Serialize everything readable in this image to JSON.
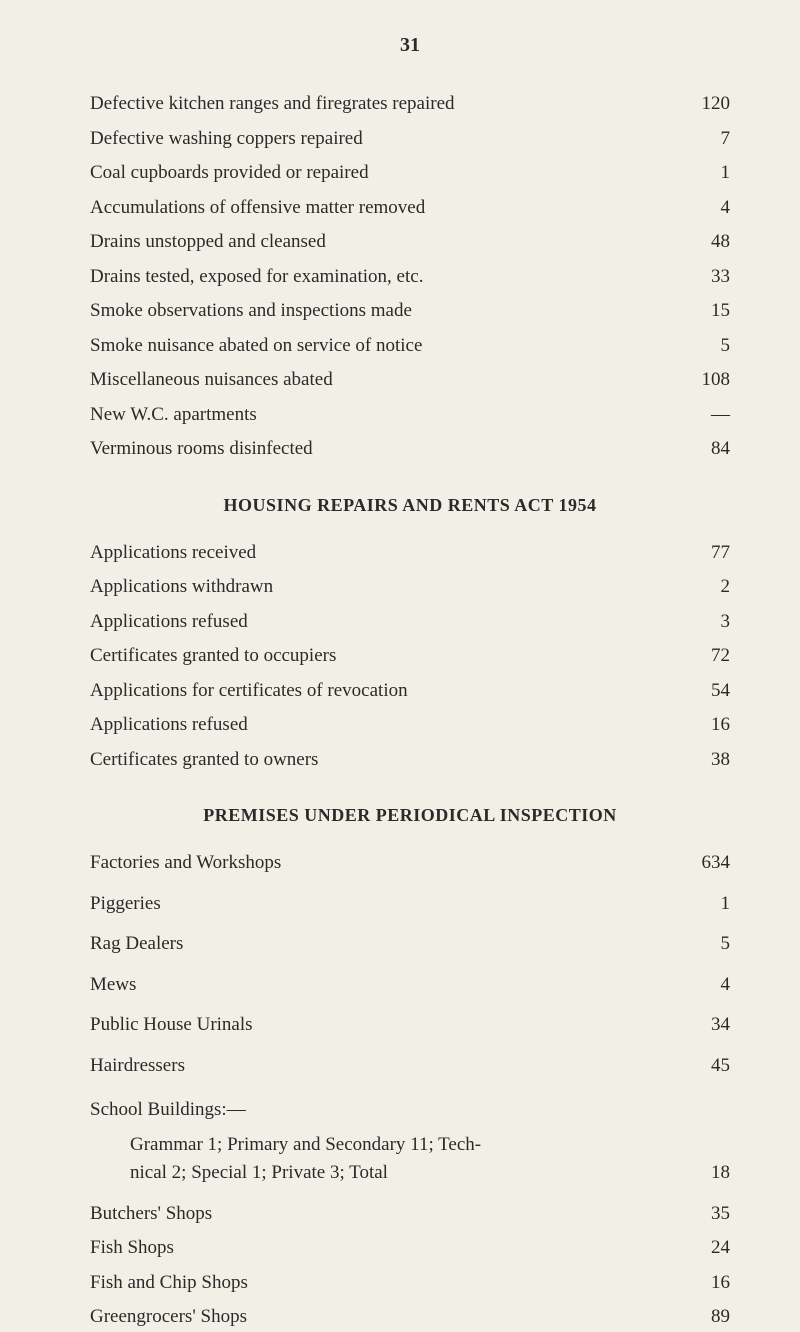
{
  "pageNumber": "31",
  "section1": {
    "items": [
      {
        "label": "Defective kitchen ranges and firegrates repaired",
        "value": "120"
      },
      {
        "label": "Defective washing coppers repaired",
        "value": "7"
      },
      {
        "label": "Coal cupboards provided or repaired",
        "value": "1"
      },
      {
        "label": "Accumulations of offensive matter removed",
        "value": "4"
      },
      {
        "label": "Drains unstopped and cleansed",
        "value": "48"
      },
      {
        "label": "Drains tested, exposed for examination, etc.",
        "value": "33"
      },
      {
        "label": "Smoke observations and inspections made",
        "value": "15"
      },
      {
        "label": "Smoke nuisance abated on service of notice",
        "value": "5"
      },
      {
        "label": "Miscellaneous nuisances abated",
        "value": "108"
      },
      {
        "label": "New W.C. apartments",
        "value": "—"
      },
      {
        "label": "Verminous rooms disinfected",
        "value": "84"
      }
    ]
  },
  "section2": {
    "heading": "HOUSING REPAIRS AND RENTS ACT 1954",
    "items": [
      {
        "label": "Applications received",
        "value": "77"
      },
      {
        "label": "Applications withdrawn",
        "value": "2"
      },
      {
        "label": "Applications refused",
        "value": "3"
      },
      {
        "label": "Certificates granted to occupiers",
        "value": "72"
      },
      {
        "label": "Applications for certificates of revocation",
        "value": "54"
      },
      {
        "label": "Applications refused",
        "value": "16"
      },
      {
        "label": "Certificates granted to owners",
        "value": "38"
      }
    ]
  },
  "section3": {
    "heading": "PREMISES UNDER PERIODICAL INSPECTION",
    "items": [
      {
        "label": "Factories and Workshops",
        "value": "634"
      },
      {
        "label": "Piggeries",
        "value": "1"
      },
      {
        "label": "Rag Dealers",
        "value": "5"
      },
      {
        "label": "Mews",
        "value": "4"
      },
      {
        "label": "Public House Urinals",
        "value": "34"
      },
      {
        "label": "Hairdressers",
        "value": "45"
      }
    ],
    "schoolLabel": "School Buildings:—",
    "schoolDetail1": "Grammar 1;  Primary and Secondary 11; Tech-",
    "schoolDetail2Label": "nical 2;  Special 1;  Private 3;         Total",
    "schoolDetail2Value": "18",
    "items2": [
      {
        "label": "Butchers' Shops",
        "value": "35"
      },
      {
        "label": "Fish Shops",
        "value": "24"
      },
      {
        "label": "Fish and Chip Shops",
        "value": "16"
      },
      {
        "label": "Greengrocers' Shops",
        "value": "89"
      }
    ]
  }
}
